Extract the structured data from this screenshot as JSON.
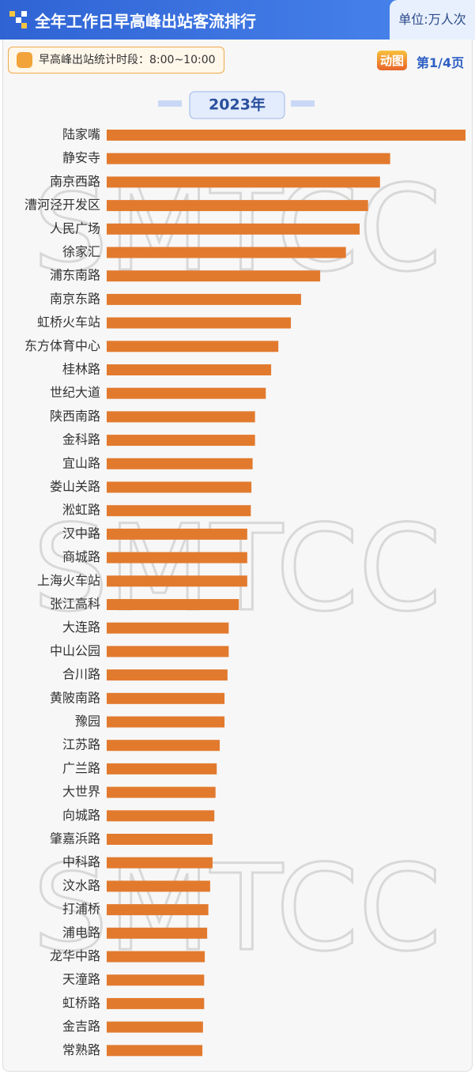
{
  "header": {
    "title": "全年工作日早高峰出站客流排行",
    "unit": "单位:万人次"
  },
  "info": {
    "period": "早高峰出站统计时段：8:00~10:00",
    "badge": "动图",
    "page": "第1/4页"
  },
  "watermark": "SMTCC",
  "chart_data": {
    "type": "bar",
    "orientation": "horizontal",
    "title": "2023年",
    "categories": [
      "陆家嘴",
      "静安寺",
      "南京西路",
      "漕河泾开发区",
      "人民广场",
      "徐家汇",
      "浦东南路",
      "南京东路",
      "虹桥火车站",
      "东方体育中心",
      "桂林路",
      "世纪大道",
      "陕西南路",
      "金科路",
      "宜山路",
      "娄山关路",
      "淞虹路",
      "汉中路",
      "商城路",
      "上海火车站",
      "张江高科",
      "大连路",
      "中山公园",
      "合川路",
      "黄陂南路",
      "豫园",
      "江苏路",
      "广兰路",
      "大世界",
      "向城路",
      "肇嘉浜路",
      "中科路",
      "汶水路",
      "打浦桥",
      "浦电路",
      "龙华中路",
      "天潼路",
      "虹桥路",
      "金吉路",
      "常熟路"
    ],
    "values": [
      6.0,
      4.74,
      4.57,
      4.37,
      4.23,
      4.0,
      3.57,
      3.25,
      3.08,
      2.87,
      2.75,
      2.66,
      2.48,
      2.48,
      2.44,
      2.42,
      2.41,
      2.35,
      2.35,
      2.35,
      2.21,
      2.04,
      2.04,
      2.02,
      1.97,
      1.97,
      1.89,
      1.84,
      1.82,
      1.8,
      1.77,
      1.77,
      1.73,
      1.7,
      1.68,
      1.64,
      1.63,
      1.63,
      1.61,
      1.6
    ],
    "color": "#e27a2e",
    "xlim": [
      0,
      6
    ]
  }
}
